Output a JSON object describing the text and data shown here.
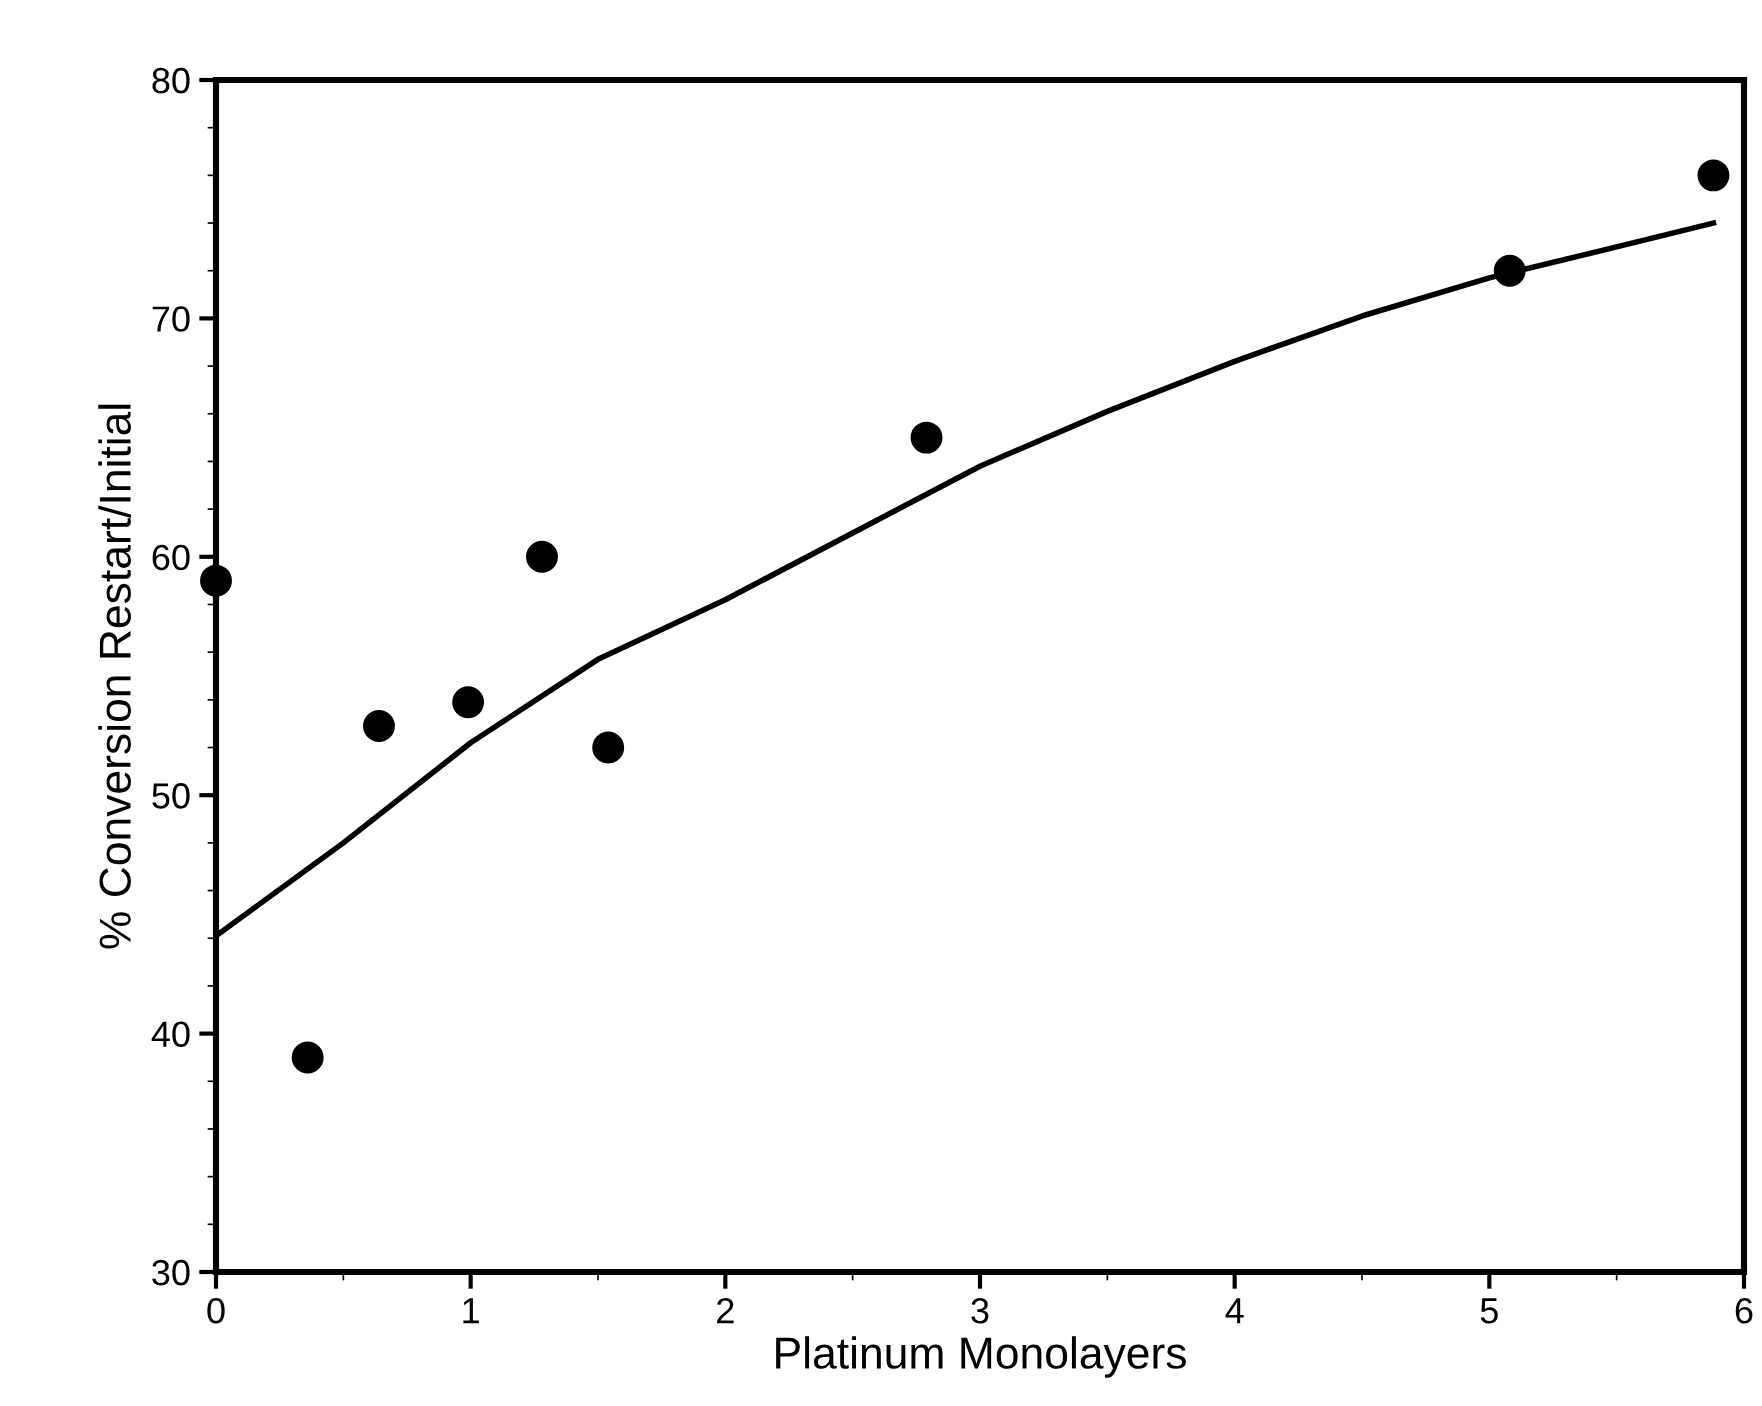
{
  "chart_data": {
    "type": "scatter",
    "xlabel": "Platinum Monolayers",
    "ylabel": "% Conversion Restart/Initial",
    "xlim": [
      0,
      6
    ],
    "ylim": [
      30,
      80
    ],
    "xticks": [
      0,
      1,
      2,
      3,
      4,
      5,
      6
    ],
    "yticks": [
      30,
      40,
      50,
      60,
      70,
      80
    ],
    "grid": false,
    "series": [
      {
        "color": "#000000",
        "marker": "circle",
        "x": [
          0,
          0.36,
          0.64,
          0.99,
          1.28,
          1.54,
          2.79,
          5.08,
          5.88
        ],
        "values": [
          59,
          39,
          52.9,
          53.9,
          60,
          52,
          65,
          72,
          76
        ]
      },
      {
        "type": "line",
        "color": "#000000",
        "line_style": "solid",
        "marker": "none",
        "x": [
          0,
          0.5,
          1,
          1.5,
          2,
          2.5,
          3,
          3.5,
          4,
          4.5,
          5,
          5.5,
          5.88
        ],
        "values": [
          44.1,
          48,
          52.2,
          55.7,
          58.2,
          61,
          63.8,
          66.1,
          68.2,
          70.1,
          71.7,
          73,
          74
        ]
      }
    ]
  }
}
